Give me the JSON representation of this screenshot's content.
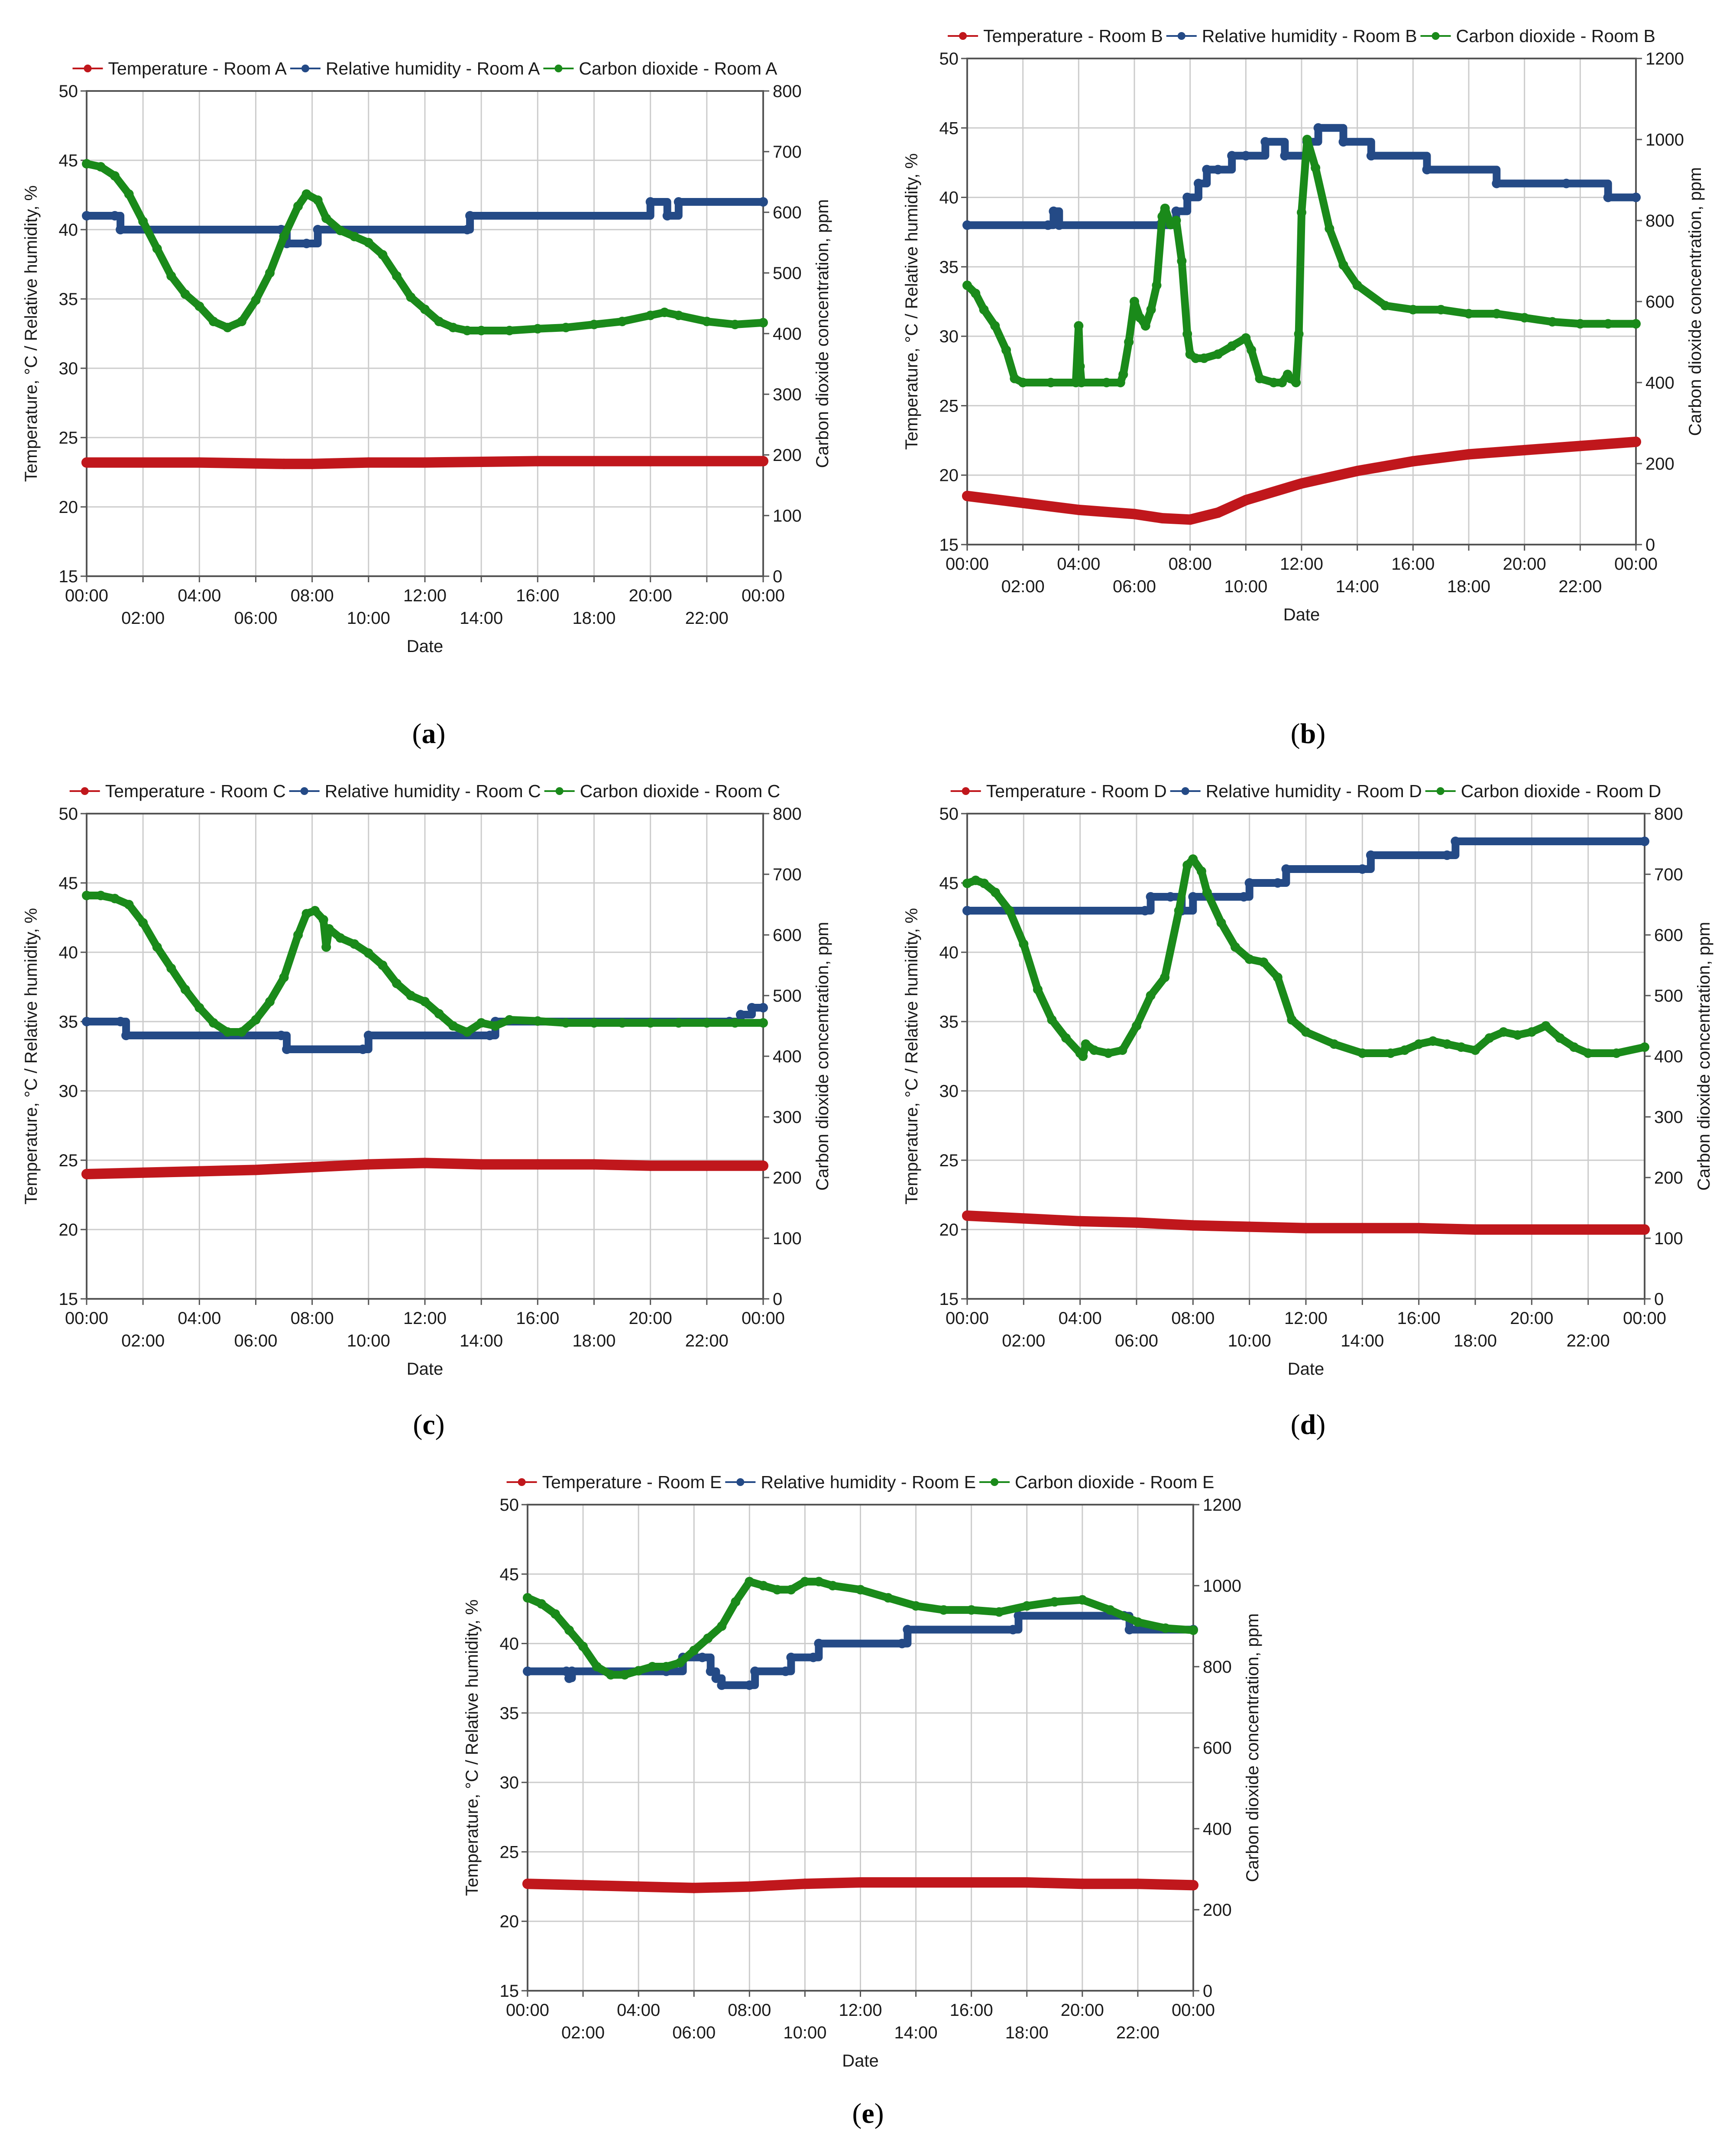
{
  "colors": {
    "temperature": "#c0171c",
    "humidity": "#244a86",
    "co2": "#1a8a1a",
    "grid": "#cccccc",
    "frame": "#555555"
  },
  "chart_data": [
    {
      "type": "line",
      "panel": "a",
      "room": "Room A",
      "xlabel": "Date",
      "ylabel": "Temperature, °C / Relative humidity, %",
      "y2label": "Carbon dioxide concentration, ppm",
      "ylim": [
        15,
        50
      ],
      "y2lim": [
        0,
        800
      ],
      "yticks": [
        15,
        20,
        25,
        30,
        35,
        40,
        45,
        50
      ],
      "y2ticks": [
        0,
        100,
        200,
        300,
        400,
        500,
        600,
        700,
        800
      ],
      "xlim": [
        0,
        24
      ],
      "xticks_top": [
        "00:00",
        "04:00",
        "08:00",
        "12:00",
        "16:00",
        "20:00",
        "00:00"
      ],
      "xticks_bottom": [
        "02:00",
        "06:00",
        "10:00",
        "14:00",
        "18:00",
        "22:00"
      ],
      "series": [
        {
          "name": "Temperature - Room A",
          "axis": "left",
          "x": [
            0,
            4,
            7,
            8,
            10,
            12,
            16,
            20,
            24
          ],
          "values": [
            23.2,
            23.2,
            23.1,
            23.1,
            23.2,
            23.2,
            23.3,
            23.3,
            23.3
          ]
        },
        {
          "name": "Relative humidity - Room A",
          "axis": "left",
          "step": true,
          "x": [
            0,
            1,
            1.2,
            6.9,
            7.1,
            7.8,
            8.2,
            13.5,
            13.6,
            20,
            20.6,
            21,
            24
          ],
          "values": [
            41,
            41,
            40,
            40,
            39,
            39,
            40,
            40,
            41,
            42,
            41,
            42,
            42
          ]
        },
        {
          "name": "Carbon dioxide - Room A",
          "axis": "right",
          "x": [
            0,
            0.5,
            1,
            1.5,
            2,
            2.5,
            3,
            3.5,
            4,
            4.5,
            5,
            5.5,
            6,
            6.5,
            7,
            7.5,
            7.8,
            8.2,
            8.5,
            9,
            9.5,
            10,
            10.5,
            11,
            11.5,
            12,
            12.5,
            13,
            13.5,
            14,
            15,
            16,
            17,
            18,
            19,
            20,
            20.5,
            21,
            22,
            23,
            24
          ],
          "values": [
            680,
            675,
            660,
            630,
            585,
            540,
            495,
            465,
            445,
            420,
            410,
            420,
            455,
            500,
            560,
            610,
            630,
            620,
            590,
            570,
            560,
            550,
            530,
            495,
            460,
            440,
            420,
            410,
            405,
            405,
            405,
            408,
            410,
            415,
            420,
            430,
            435,
            430,
            420,
            415,
            418
          ]
        }
      ]
    },
    {
      "type": "line",
      "panel": "b",
      "room": "Room B",
      "xlabel": "Date",
      "ylabel": "Temperature, °C / Relative humidity, %",
      "y2label": "Carbon dioxide concentration, ppm",
      "ylim": [
        15,
        50
      ],
      "y2lim": [
        0,
        1200
      ],
      "yticks": [
        15,
        20,
        25,
        30,
        35,
        40,
        45,
        50
      ],
      "y2ticks": [
        0,
        200,
        400,
        600,
        800,
        1000,
        1200
      ],
      "xlim": [
        0,
        24
      ],
      "xticks_top": [
        "00:00",
        "04:00",
        "08:00",
        "12:00",
        "16:00",
        "20:00",
        "00:00"
      ],
      "xticks_bottom": [
        "02:00",
        "06:00",
        "10:00",
        "14:00",
        "18:00",
        "22:00"
      ],
      "series": [
        {
          "name": "Temperature - Room B",
          "axis": "left",
          "x": [
            0,
            2,
            4,
            6,
            7,
            8,
            9,
            10,
            12,
            14,
            16,
            18,
            20,
            22,
            24
          ],
          "values": [
            18.5,
            18.0,
            17.5,
            17.2,
            16.9,
            16.8,
            17.3,
            18.2,
            19.4,
            20.3,
            21.0,
            21.5,
            21.8,
            22.1,
            22.4
          ]
        },
        {
          "name": "Relative humidity - Room B",
          "axis": "left",
          "step": true,
          "x": [
            0,
            2.9,
            3.1,
            3.3,
            6.9,
            7.5,
            7.9,
            8.3,
            8.6,
            9.0,
            9.5,
            10.0,
            10.7,
            11.4,
            12.2,
            12.6,
            13.5,
            14.5,
            16.5,
            19.0,
            21.5,
            23.0,
            24
          ],
          "values": [
            38,
            38,
            39,
            38,
            38,
            39,
            40,
            41,
            42,
            42,
            43,
            43,
            44,
            43,
            44,
            45,
            44,
            43,
            42,
            41,
            41,
            40,
            40
          ]
        },
        {
          "name": "Carbon dioxide - Room B",
          "axis": "right",
          "x": [
            0,
            0.3,
            0.6,
            1,
            1.4,
            1.7,
            2,
            3,
            3.9,
            4.0,
            4.05,
            4.1,
            5,
            5.5,
            5.6,
            5.8,
            6,
            6.2,
            6.4,
            6.6,
            6.8,
            7.0,
            7.1,
            7.3,
            7.5,
            7.7,
            7.9,
            8.0,
            8.2,
            8.5,
            9,
            9.5,
            10,
            10.2,
            10.5,
            11,
            11.3,
            11.5,
            11.6,
            11.8,
            11.9,
            12,
            12.2,
            12.5,
            13,
            13.5,
            14,
            15,
            16,
            17,
            18,
            19,
            20,
            21,
            22,
            23,
            24
          ],
          "values": [
            640,
            620,
            580,
            540,
            480,
            410,
            400,
            400,
            400,
            540,
            440,
            400,
            400,
            400,
            420,
            500,
            600,
            560,
            540,
            580,
            640,
            810,
            830,
            790,
            800,
            700,
            520,
            470,
            460,
            460,
            470,
            490,
            510,
            480,
            410,
            400,
            400,
            420,
            410,
            400,
            520,
            820,
            1000,
            930,
            780,
            690,
            640,
            590,
            580,
            580,
            570,
            570,
            560,
            550,
            545,
            545,
            545
          ]
        }
      ]
    },
    {
      "type": "line",
      "panel": "c",
      "room": "Room C",
      "xlabel": "Date",
      "ylabel": "Temperature, °C / Relative humidity, %",
      "y2label": "Carbon dioxide concentration, ppm",
      "ylim": [
        15,
        50
      ],
      "y2lim": [
        0,
        800
      ],
      "yticks": [
        15,
        20,
        25,
        30,
        35,
        40,
        45,
        50
      ],
      "y2ticks": [
        0,
        100,
        200,
        300,
        400,
        500,
        600,
        700,
        800
      ],
      "xlim": [
        0,
        24
      ],
      "xticks_top": [
        "00:00",
        "04:00",
        "08:00",
        "12:00",
        "16:00",
        "20:00",
        "00:00"
      ],
      "xticks_bottom": [
        "02:00",
        "06:00",
        "10:00",
        "14:00",
        "18:00",
        "22:00"
      ],
      "series": [
        {
          "name": "Temperature - Room C",
          "axis": "left",
          "x": [
            0,
            2,
            4,
            6,
            8,
            10,
            12,
            14,
            16,
            18,
            20,
            22,
            24
          ],
          "values": [
            24.0,
            24.1,
            24.2,
            24.3,
            24.5,
            24.7,
            24.8,
            24.7,
            24.7,
            24.7,
            24.6,
            24.6,
            24.6
          ]
        },
        {
          "name": "Relative humidity - Room C",
          "axis": "left",
          "step": true,
          "x": [
            0,
            1.2,
            1.4,
            6.9,
            7.1,
            9.8,
            10.0,
            14.3,
            14.5,
            22.8,
            23.2,
            23.6,
            24
          ],
          "values": [
            35,
            35,
            34,
            34,
            33,
            33,
            34,
            34,
            35,
            35,
            35.5,
            36,
            36
          ]
        },
        {
          "name": "Carbon dioxide - Room C",
          "axis": "right",
          "x": [
            0,
            0.5,
            1,
            1.5,
            2,
            2.5,
            3,
            3.5,
            4,
            4.5,
            5,
            5.5,
            6,
            6.5,
            7,
            7.5,
            7.8,
            8.1,
            8.4,
            8.5,
            8.6,
            9,
            9.5,
            10,
            10.5,
            11,
            11.5,
            12,
            12.5,
            13,
            13.5,
            14,
            14.5,
            15,
            16,
            17,
            18,
            19,
            20,
            21,
            22,
            23,
            24
          ],
          "values": [
            665,
            665,
            660,
            650,
            620,
            580,
            545,
            510,
            480,
            455,
            440,
            440,
            460,
            490,
            530,
            600,
            635,
            640,
            625,
            580,
            610,
            595,
            585,
            570,
            550,
            520,
            500,
            490,
            470,
            450,
            440,
            455,
            450,
            460,
            458,
            455,
            455,
            455,
            455,
            455,
            455,
            455,
            455
          ]
        }
      ]
    },
    {
      "type": "line",
      "panel": "d",
      "room": "Room D",
      "xlabel": "Date",
      "ylabel": "Temperature, °C / Relative humidity, %",
      "y2label": "Carbon dioxide concentration, ppm",
      "ylim": [
        15,
        50
      ],
      "y2lim": [
        0,
        800
      ],
      "yticks": [
        15,
        20,
        25,
        30,
        35,
        40,
        45,
        50
      ],
      "y2ticks": [
        0,
        100,
        200,
        300,
        400,
        500,
        600,
        700,
        800
      ],
      "xlim": [
        0,
        24
      ],
      "xticks_top": [
        "00:00",
        "04:00",
        "08:00",
        "12:00",
        "16:00",
        "20:00",
        "00:00"
      ],
      "xticks_bottom": [
        "02:00",
        "06:00",
        "10:00",
        "14:00",
        "18:00",
        "22:00"
      ],
      "series": [
        {
          "name": "Temperature - Room D",
          "axis": "left",
          "x": [
            0,
            2,
            4,
            6,
            8,
            10,
            12,
            14,
            16,
            18,
            20,
            22,
            24
          ],
          "values": [
            21.0,
            20.8,
            20.6,
            20.5,
            20.3,
            20.2,
            20.1,
            20.1,
            20.1,
            20.0,
            20.0,
            20.0,
            20.0
          ]
        },
        {
          "name": "Relative humidity - Room D",
          "axis": "left",
          "step": true,
          "x": [
            0,
            6.3,
            6.5,
            7.2,
            7.6,
            8.0,
            9.8,
            10.0,
            11.0,
            11.3,
            14.0,
            14.3,
            17.0,
            17.3,
            24
          ],
          "values": [
            43,
            43,
            44,
            44,
            43,
            44,
            44,
            45,
            45,
            46,
            46,
            47,
            47,
            48,
            48
          ]
        },
        {
          "name": "Carbon dioxide - Room D",
          "axis": "right",
          "x": [
            0,
            0.3,
            0.6,
            1,
            1.5,
            2,
            2.5,
            3,
            3.5,
            4,
            4.1,
            4.2,
            4.5,
            5,
            5.5,
            6,
            6.5,
            7,
            7.5,
            7.8,
            8.0,
            8.3,
            8.5,
            9,
            9.5,
            10,
            10.5,
            11,
            11.5,
            12,
            13,
            14,
            15,
            15.5,
            16,
            16.5,
            17,
            17.5,
            18,
            18.5,
            19,
            19.5,
            20,
            20.5,
            21,
            21.5,
            22,
            23,
            24
          ],
          "values": [
            685,
            690,
            685,
            670,
            640,
            585,
            510,
            460,
            430,
            405,
            400,
            420,
            410,
            405,
            410,
            450,
            500,
            530,
            640,
            715,
            725,
            705,
            670,
            620,
            580,
            560,
            555,
            530,
            460,
            440,
            420,
            405,
            405,
            410,
            420,
            425,
            420,
            415,
            410,
            430,
            440,
            435,
            440,
            450,
            430,
            415,
            405,
            405,
            415
          ]
        }
      ]
    },
    {
      "type": "line",
      "panel": "e",
      "room": "Room E",
      "xlabel": "Date",
      "ylabel": "Temperature, °C / Relative humidity, %",
      "y2label": "Carbon dioxide concentration, ppm",
      "ylim": [
        15,
        50
      ],
      "y2lim": [
        0,
        1200
      ],
      "yticks": [
        15,
        20,
        25,
        30,
        35,
        40,
        45,
        50
      ],
      "y2ticks": [
        0,
        200,
        400,
        600,
        800,
        1000,
        1200
      ],
      "xlim": [
        0,
        24
      ],
      "xticks_top": [
        "00:00",
        "04:00",
        "08:00",
        "12:00",
        "16:00",
        "20:00",
        "00:00"
      ],
      "xticks_bottom": [
        "02:00",
        "06:00",
        "10:00",
        "14:00",
        "18:00",
        "22:00"
      ],
      "series": [
        {
          "name": "Temperature - Room E",
          "axis": "left",
          "x": [
            0,
            2,
            4,
            6,
            8,
            10,
            12,
            14,
            16,
            18,
            20,
            22,
            24
          ],
          "values": [
            22.7,
            22.6,
            22.5,
            22.4,
            22.5,
            22.7,
            22.8,
            22.8,
            22.8,
            22.8,
            22.7,
            22.7,
            22.6
          ]
        },
        {
          "name": "Relative humidity - Room E",
          "axis": "left",
          "step": true,
          "x": [
            0,
            1.4,
            1.5,
            1.6,
            5.0,
            5.6,
            6.3,
            6.6,
            6.8,
            7.0,
            8.0,
            8.2,
            9.3,
            9.5,
            10.3,
            10.5,
            13.5,
            13.7,
            17.5,
            17.7,
            21.5,
            21.7,
            24
          ],
          "values": [
            38,
            38,
            37.5,
            38,
            38,
            39,
            39,
            38,
            37.5,
            37,
            37,
            38,
            38,
            39,
            39,
            40,
            40,
            41,
            41,
            42,
            42,
            41,
            41
          ]
        },
        {
          "name": "Carbon dioxide - Room E",
          "axis": "right",
          "x": [
            0,
            0.5,
            1,
            1.5,
            2,
            2.5,
            3,
            3.5,
            4,
            4.5,
            5,
            5.5,
            6,
            6.5,
            7,
            7.5,
            8,
            8.5,
            9,
            9.5,
            10,
            10.5,
            11,
            12,
            13,
            14,
            15,
            16,
            17,
            18,
            19,
            20,
            21,
            22,
            23,
            24
          ],
          "values": [
            970,
            955,
            930,
            890,
            850,
            800,
            780,
            780,
            790,
            800,
            800,
            810,
            840,
            870,
            900,
            960,
            1010,
            1000,
            990,
            990,
            1010,
            1010,
            1000,
            990,
            970,
            950,
            940,
            940,
            935,
            950,
            960,
            965,
            940,
            910,
            895,
            890
          ]
        }
      ]
    }
  ],
  "panel_labels": [
    "a",
    "b",
    "c",
    "d",
    "e"
  ]
}
